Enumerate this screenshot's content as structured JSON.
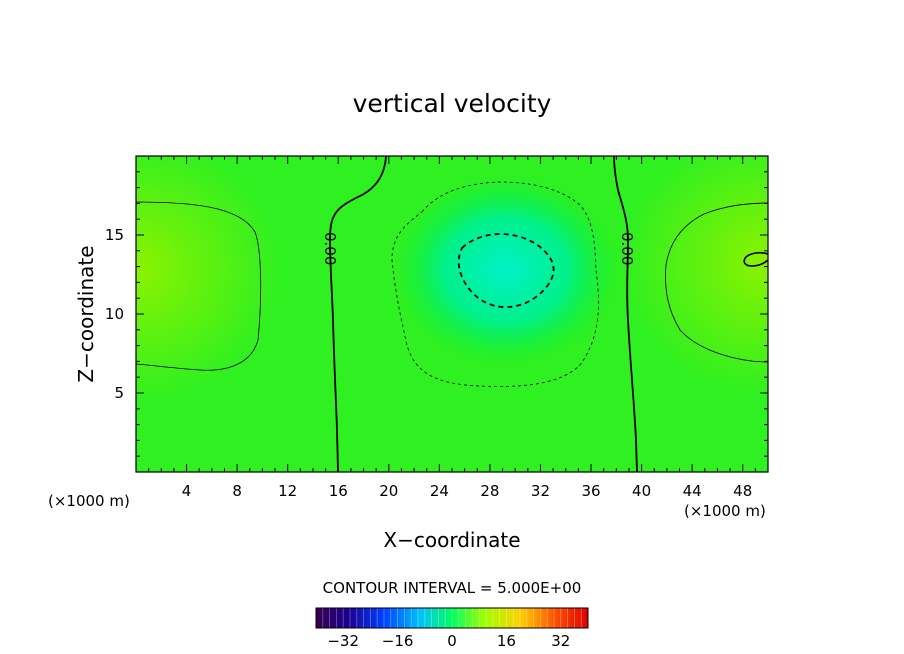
{
  "chart_data": {
    "type": "heatmap",
    "title": "vertical velocity",
    "xlabel": "X−coordinate",
    "ylabel": "Z−coordinate",
    "x_unit_left": "(×1000 m)",
    "x_unit_right": "(×1000 m)",
    "xlim": [
      0,
      50
    ],
    "ylim": [
      0,
      20
    ],
    "x_ticks": [
      4,
      8,
      12,
      16,
      20,
      24,
      28,
      32,
      36,
      40,
      44,
      48
    ],
    "y_ticks": [
      5,
      10,
      15
    ],
    "contour_interval_text": "CONTOUR INTERVAL = 5.000E+00",
    "contour_labels": [
      "0.00",
      "0.00"
    ],
    "colorbar": {
      "range": [
        -40,
        40
      ],
      "ticks": [
        -32,
        -16,
        0,
        16,
        32
      ],
      "tick_labels": [
        "−32",
        "−16",
        "0",
        "16",
        "32"
      ],
      "colormap": "rainbow"
    },
    "field": {
      "description_points": [
        {
          "x": 1,
          "z": 13,
          "w": 10
        },
        {
          "x": 29,
          "z": 13,
          "w": -11
        },
        {
          "x": 49,
          "z": 13.5,
          "w": 12
        }
      ]
    },
    "contours": [
      {
        "level": 5,
        "style": "thin-solid",
        "region": "left"
      },
      {
        "level": 0,
        "style": "thick-solid",
        "region": "x~15-20"
      },
      {
        "level": -5,
        "style": "thin-dashed",
        "region": "center"
      },
      {
        "level": -10,
        "style": "thick-dashed",
        "region": "center"
      },
      {
        "level": 0,
        "style": "thick-solid",
        "region": "x~38-40"
      },
      {
        "level": 5,
        "style": "thin-solid",
        "region": "right"
      },
      {
        "level": 10,
        "style": "thick-solid",
        "region": "right-edge"
      }
    ]
  }
}
